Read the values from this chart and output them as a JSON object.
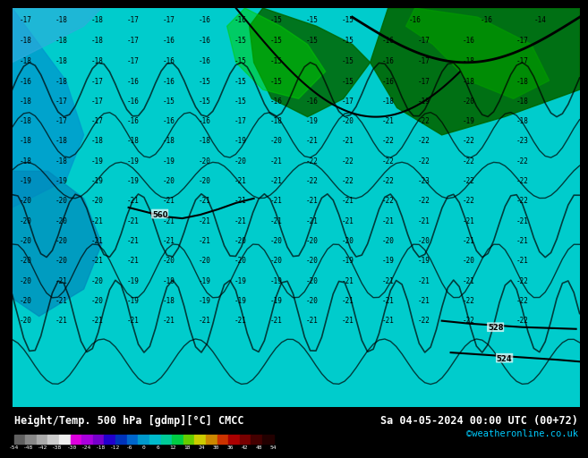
{
  "title_left": "Height/Temp. 500 hPa [gdmp][°C] CMCC",
  "title_right": "Sa 04-05-2024 00:00 UTC (00+72)",
  "credit": "©weatheronline.co.uk",
  "colorbar_ticks": [
    -54,
    -48,
    -42,
    -38,
    -30,
    -24,
    -18,
    -12,
    -6,
    0,
    6,
    12,
    18,
    24,
    30,
    36,
    42,
    48,
    54
  ],
  "colorbar_colors": [
    "#808080",
    "#a0a0a0",
    "#c0c0c0",
    "#e0e0e0",
    "#cc00cc",
    "#9900cc",
    "#6600cc",
    "#0000cc",
    "#0066cc",
    "#00cccc",
    "#00cc66",
    "#cccc00",
    "#cc6600",
    "#cc0000",
    "#990000",
    "#660000",
    "#330000",
    "#110000"
  ],
  "bg_color": "#00cccc",
  "fig_bg": "#000000",
  "text_color_left": "#ffffff",
  "text_color_right": "#ffffff",
  "credit_color": "#00ccff"
}
